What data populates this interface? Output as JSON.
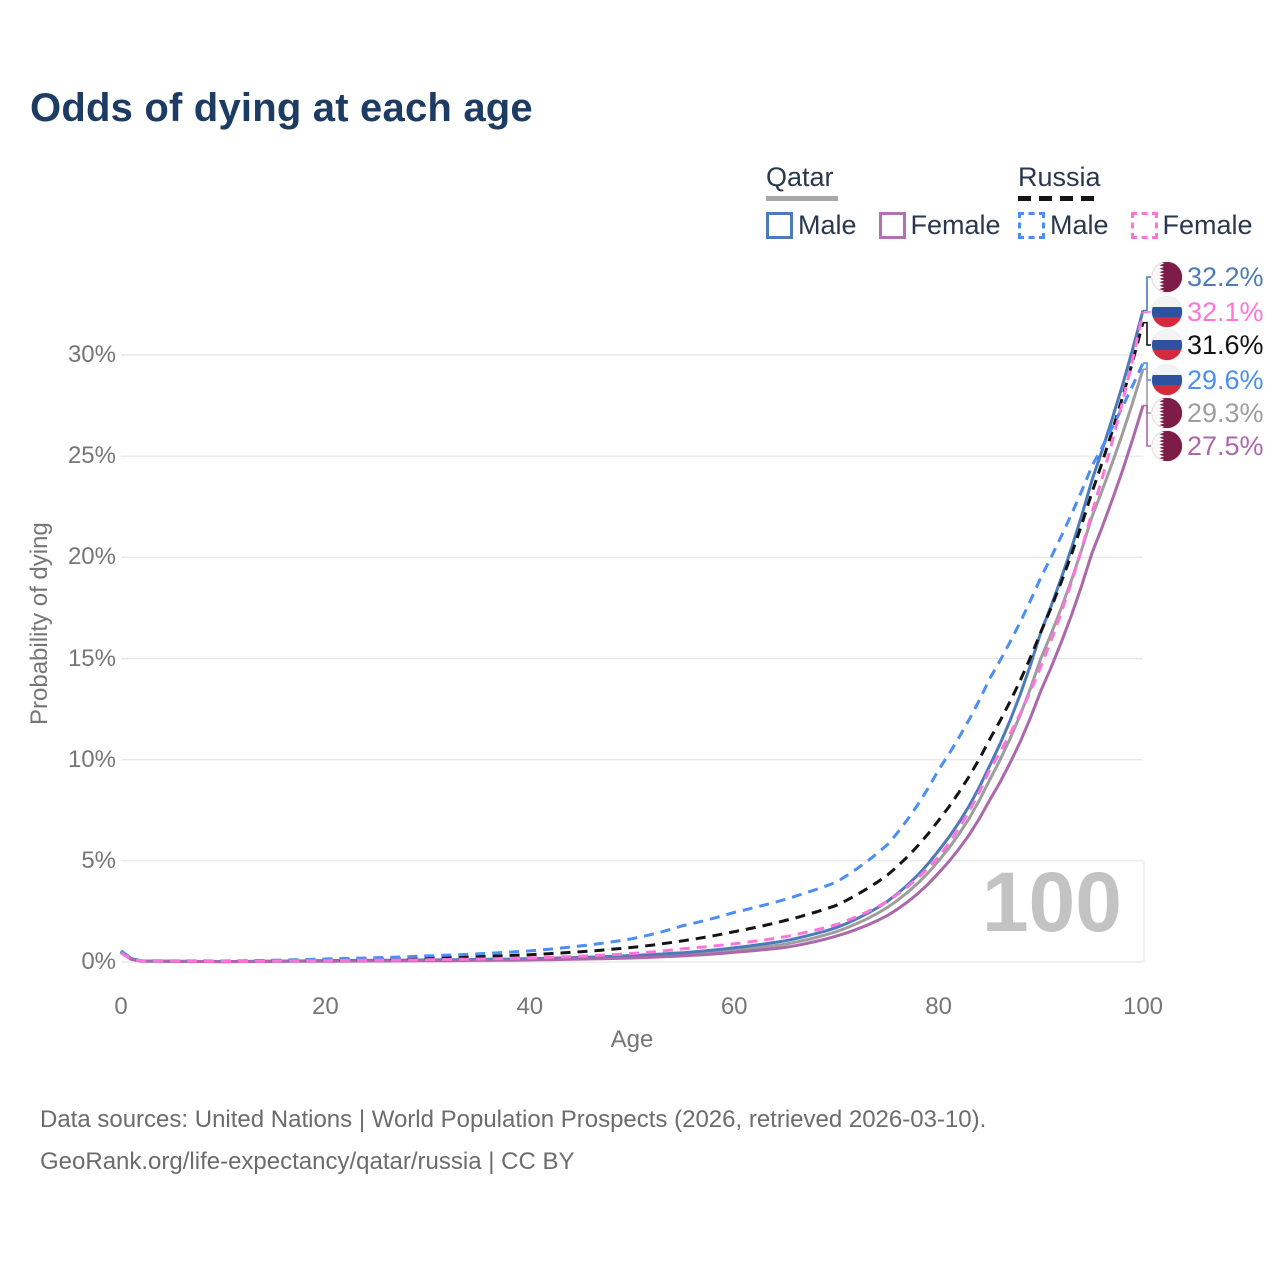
{
  "title": "Odds of dying at each age",
  "legend": {
    "qatar": {
      "label": "Qatar",
      "male_label": "Male",
      "female_label": "Female"
    },
    "russia": {
      "label": "Russia",
      "male_label": "Male",
      "female_label": "Female"
    }
  },
  "colors": {
    "qatar_male": "#4d7ab8",
    "qatar_all": "#9e9e9e",
    "qatar_female": "#ab68ab",
    "russia_male": "#4a8ef6",
    "russia_all": "#141414",
    "russia_female": "#ff74dc",
    "title_text": "#1d3c63",
    "axis_text": "#767676",
    "gridline": "#e8e8e8",
    "watermark": "#c3c3c3",
    "qatar_flag_maroon": "#7e1c48",
    "russia_flag_blue": "#2e51a2",
    "russia_flag_red": "#d5293d"
  },
  "chart_data": {
    "type": "line",
    "title": "Odds of dying at each age",
    "xlabel": "Age",
    "ylabel": "Probability of dying",
    "xlim": [
      0,
      100
    ],
    "ylim_percent": [
      0,
      34
    ],
    "grid": "horizontal-only",
    "x_ticks": [
      {
        "value": 0,
        "label": "0"
      },
      {
        "value": 20,
        "label": "20"
      },
      {
        "value": 40,
        "label": "40"
      },
      {
        "value": 60,
        "label": "60"
      },
      {
        "value": 80,
        "label": "80"
      },
      {
        "value": 100,
        "label": "100"
      }
    ],
    "y_ticks": [
      {
        "value": 0,
        "label": "0%"
      },
      {
        "value": 5,
        "label": "5%"
      },
      {
        "value": 10,
        "label": "10%"
      },
      {
        "value": 15,
        "label": "15%"
      },
      {
        "value": 20,
        "label": "20%"
      },
      {
        "value": 25,
        "label": "25%"
      },
      {
        "value": 30,
        "label": "30%"
      }
    ],
    "ages": [
      0,
      2,
      10,
      20,
      30,
      40,
      50,
      55,
      60,
      65,
      70,
      75,
      80,
      85,
      90,
      95,
      100
    ],
    "series": [
      {
        "name": "Qatar (all)",
        "country": "Qatar",
        "group": "all",
        "color": "#9e9e9e",
        "dashed": false,
        "values_percent": [
          0.5,
          0.05,
          0.02,
          0.06,
          0.08,
          0.13,
          0.26,
          0.38,
          0.58,
          0.88,
          1.5,
          2.7,
          5.0,
          9.0,
          15.0,
          22.0,
          29.3
        ]
      },
      {
        "name": "Qatar Male",
        "country": "Qatar",
        "group": "male",
        "color": "#4d7ab8",
        "dashed": false,
        "values_percent": [
          0.55,
          0.05,
          0.02,
          0.07,
          0.1,
          0.16,
          0.32,
          0.46,
          0.7,
          1.05,
          1.7,
          3.0,
          5.5,
          9.7,
          16.3,
          23.8,
          32.2
        ]
      },
      {
        "name": "Qatar Female",
        "country": "Qatar",
        "group": "female",
        "color": "#ab68ab",
        "dashed": false,
        "values_percent": [
          0.45,
          0.04,
          0.02,
          0.04,
          0.06,
          0.1,
          0.2,
          0.3,
          0.48,
          0.72,
          1.28,
          2.3,
          4.4,
          8.0,
          13.4,
          20.2,
          27.5
        ]
      },
      {
        "name": "Russia (all)",
        "country": "Russia",
        "group": "all",
        "color": "#141414",
        "dashed": true,
        "values_percent": [
          0.5,
          0.05,
          0.04,
          0.11,
          0.2,
          0.36,
          0.72,
          1.05,
          1.5,
          2.05,
          2.8,
          4.3,
          7.0,
          11.0,
          16.3,
          23.2,
          31.6
        ]
      },
      {
        "name": "Russia Male",
        "country": "Russia",
        "group": "male",
        "color": "#4a8ef6",
        "dashed": true,
        "values_percent": [
          0.55,
          0.06,
          0.05,
          0.15,
          0.3,
          0.55,
          1.15,
          1.8,
          2.45,
          3.1,
          3.95,
          5.8,
          9.5,
          14.0,
          19.0,
          24.5,
          29.6
        ]
      },
      {
        "name": "Russia Female",
        "country": "Russia",
        "group": "female",
        "color": "#ff74dc",
        "dashed": true,
        "values_percent": [
          0.45,
          0.05,
          0.03,
          0.07,
          0.11,
          0.2,
          0.42,
          0.65,
          0.9,
          1.25,
          1.85,
          3.0,
          5.2,
          9.5,
          14.6,
          22.2,
          32.1
        ]
      }
    ],
    "age_cursor_label": "100"
  },
  "endpoints": [
    {
      "value": "32.2%",
      "percent": 32.2,
      "flag": "qatar",
      "series": "Qatar Male",
      "color": "#4d7ab8"
    },
    {
      "value": "32.1%",
      "percent": 32.1,
      "flag": "russia",
      "series": "Russia Female",
      "color": "#ff74dc"
    },
    {
      "value": "31.6%",
      "percent": 31.6,
      "flag": "russia",
      "series": "Russia (all)",
      "color": "#141414"
    },
    {
      "value": "29.6%",
      "percent": 29.6,
      "flag": "russia",
      "series": "Russia Male",
      "color": "#4a8ef6"
    },
    {
      "value": "29.3%",
      "percent": 29.3,
      "flag": "qatar",
      "series": "Qatar (all)",
      "color": "#9e9e9e"
    },
    {
      "value": "27.5%",
      "percent": 27.5,
      "flag": "qatar",
      "series": "Qatar Female",
      "color": "#ab68ab"
    }
  ],
  "footer": {
    "line1": "Data sources: United Nations | World Population Prospects (2026, retrieved 2026-03-10).",
    "line2": "GeoRank.org/life-expectancy/qatar/russia | CC BY"
  }
}
